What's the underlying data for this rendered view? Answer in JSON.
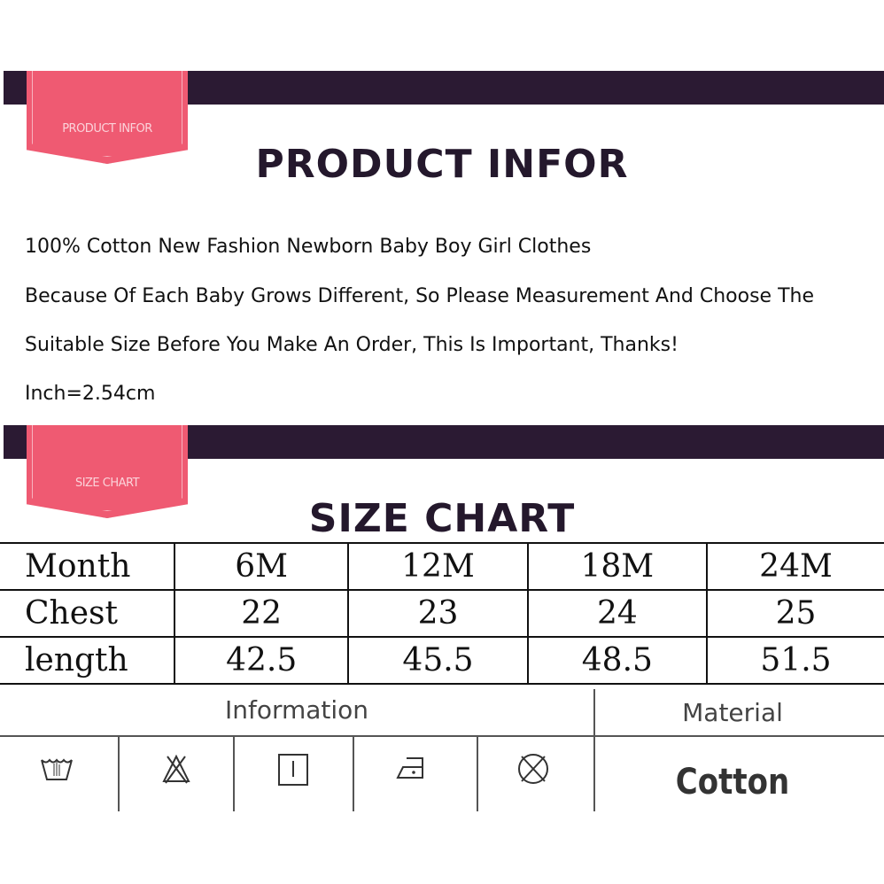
{
  "product_section": {
    "tag": "PRODUCT INFOR",
    "title": "PRODUCT INFOR"
  },
  "description": [
    "100% Cotton New Fashion Newborn Baby  Boy Girl Clothes",
    "Because Of Each Baby Grows Different, So Please Measurement And Choose The",
    "Suitable Size Before You Make An Order, This Is Important, Thanks!",
    "Inch=2.54cm"
  ],
  "size_section": {
    "tag": "SIZE CHART",
    "title": "SIZE CHART"
  },
  "size_table": {
    "rows": [
      [
        "Month",
        "6M",
        "12M",
        "18M",
        "24M"
      ],
      [
        "Chest",
        "22",
        "23",
        "24",
        "25"
      ],
      [
        "length",
        "42.5",
        "45.5",
        "48.5",
        "51.5"
      ]
    ]
  },
  "care": {
    "information_label": "Information",
    "material_label": "Material",
    "material_value": "Cotton",
    "icons": [
      "hand-wash-icon",
      "do-not-bleach-icon",
      "line-dry-icon",
      "iron-low-icon",
      "do-not-dry-clean-icon"
    ]
  },
  "colors": {
    "bar": "#2b1a33",
    "tag": "#ef5a72"
  }
}
